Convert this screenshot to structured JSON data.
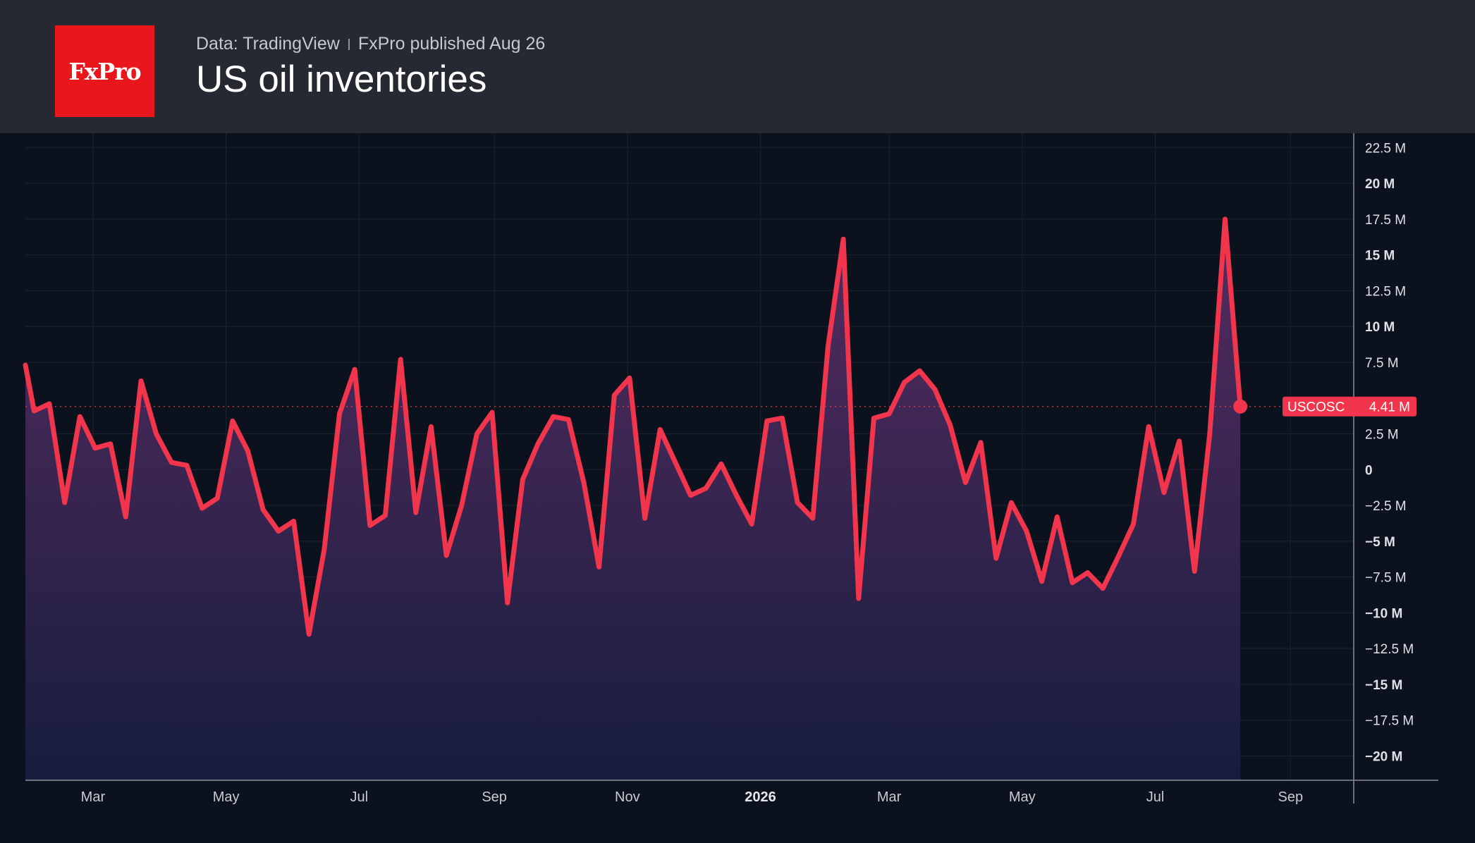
{
  "header": {
    "logo_text": "FxPro",
    "source": "Data: TradingView",
    "published": "FxPro published Aug 26",
    "title": "US oil inventories"
  },
  "colors": {
    "line": "#f0354c",
    "area_top": "#5a2d64",
    "area_bottom": "#161d3d",
    "background": "#0c121d",
    "header_background": "#262832",
    "logo_background": "#e9171b"
  },
  "chart_data": {
    "type": "area",
    "title": "US oil inventories",
    "xlabel": "",
    "ylabel": "",
    "x_range": [
      "2025-01-29",
      "2026-09-30"
    ],
    "ylim": [
      -21.7,
      23.5
    ],
    "grid": true,
    "y_ticks": [
      {
        "value": 22.5,
        "label": "22.5 M",
        "major": false
      },
      {
        "value": 20,
        "label": "20 M",
        "major": true
      },
      {
        "value": 17.5,
        "label": "17.5 M",
        "major": false
      },
      {
        "value": 15,
        "label": "15 M",
        "major": true
      },
      {
        "value": 12.5,
        "label": "12.5 M",
        "major": false
      },
      {
        "value": 10,
        "label": "10 M",
        "major": true
      },
      {
        "value": 7.5,
        "label": "7.5 M",
        "major": false
      },
      {
        "value": 2.5,
        "label": "2.5 M",
        "major": false
      },
      {
        "value": 0,
        "label": "0",
        "major": true
      },
      {
        "value": -2.5,
        "label": "−2.5 M",
        "major": false
      },
      {
        "value": -5,
        "label": "−5 M",
        "major": true
      },
      {
        "value": -7.5,
        "label": "−7.5 M",
        "major": false
      },
      {
        "value": -10,
        "label": "−10 M",
        "major": true
      },
      {
        "value": -12.5,
        "label": "−12.5 M",
        "major": false
      },
      {
        "value": -15,
        "label": "−15 M",
        "major": true
      },
      {
        "value": -17.5,
        "label": "−17.5 M",
        "major": false
      },
      {
        "value": -20,
        "label": "−20 M",
        "major": true
      }
    ],
    "x_ticks": [
      {
        "date": "2025-03-01",
        "label": "Mar",
        "year": false
      },
      {
        "date": "2025-05-01",
        "label": "May",
        "year": false
      },
      {
        "date": "2025-07-01",
        "label": "Jul",
        "year": false
      },
      {
        "date": "2025-09-01",
        "label": "Sep",
        "year": false
      },
      {
        "date": "2025-11-01",
        "label": "Nov",
        "year": false
      },
      {
        "date": "2026-01-01",
        "label": "2026",
        "year": true
      },
      {
        "date": "2026-03-01",
        "label": "Mar",
        "year": false
      },
      {
        "date": "2026-05-01",
        "label": "May",
        "year": false
      },
      {
        "date": "2026-07-01",
        "label": "Jul",
        "year": false
      },
      {
        "date": "2026-09-01",
        "label": "Sep",
        "year": false
      }
    ],
    "series": [
      {
        "name": "USCOSC",
        "last_value": 4.41,
        "last_label": "4.41 M",
        "x": [
          "2025-01-29",
          "2025-02-02",
          "2025-02-09",
          "2025-02-16",
          "2025-02-23",
          "2025-03-02",
          "2025-03-09",
          "2025-03-16",
          "2025-03-23",
          "2025-03-30",
          "2025-04-06",
          "2025-04-13",
          "2025-04-20",
          "2025-04-27",
          "2025-05-04",
          "2025-05-11",
          "2025-05-18",
          "2025-05-25",
          "2025-06-01",
          "2025-06-08",
          "2025-06-15",
          "2025-06-22",
          "2025-06-29",
          "2025-07-06",
          "2025-07-13",
          "2025-07-20",
          "2025-07-27",
          "2025-08-03",
          "2025-08-10",
          "2025-08-17",
          "2025-08-24",
          "2025-08-31",
          "2025-09-07",
          "2025-09-14",
          "2025-09-21",
          "2025-09-28",
          "2025-10-05",
          "2025-10-12",
          "2025-10-19",
          "2025-10-26",
          "2025-11-02",
          "2025-11-09",
          "2025-11-16",
          "2025-11-23",
          "2025-11-30",
          "2025-12-07",
          "2025-12-14",
          "2025-12-21",
          "2025-12-28",
          "2026-01-04",
          "2026-01-11",
          "2026-01-18",
          "2026-01-25",
          "2026-02-01",
          "2026-02-08",
          "2026-02-15",
          "2026-02-22",
          "2026-03-01",
          "2026-03-08",
          "2026-03-15",
          "2026-03-22",
          "2026-03-29",
          "2026-04-05",
          "2026-04-12",
          "2026-04-19",
          "2026-04-26",
          "2026-05-03",
          "2026-05-10",
          "2026-05-17",
          "2026-05-24",
          "2026-05-31",
          "2026-06-07",
          "2026-06-14",
          "2026-06-21",
          "2026-06-28",
          "2026-07-05",
          "2026-07-12",
          "2026-07-19",
          "2026-07-26",
          "2026-08-02",
          "2026-08-09"
        ],
        "values": [
          7.3,
          4.1,
          4.6,
          -2.3,
          3.7,
          1.5,
          1.8,
          -3.3,
          6.2,
          2.5,
          0.5,
          0.3,
          -2.7,
          -2.0,
          3.4,
          1.3,
          -2.8,
          -4.3,
          -3.6,
          -11.5,
          -5.6,
          3.9,
          7.0,
          -3.9,
          -3.2,
          7.7,
          -3.0,
          3.0,
          -6.0,
          -2.5,
          2.5,
          4.0,
          -9.3,
          -0.7,
          1.8,
          3.7,
          3.5,
          -0.9,
          -6.8,
          5.2,
          6.4,
          -3.4,
          2.8,
          0.5,
          -1.8,
          -1.3,
          0.4,
          -1.8,
          -3.8,
          3.4,
          3.6,
          -2.3,
          -3.4,
          8.6,
          16.1,
          -9.0,
          3.6,
          3.9,
          6.1,
          6.9,
          5.6,
          3.1,
          -0.9,
          1.9,
          -6.2,
          -2.3,
          -4.3,
          -7.8,
          -3.3,
          -7.9,
          -7.2,
          -8.3,
          -6.1,
          -3.8,
          3.0,
          -1.6,
          2.0,
          -7.1,
          2.5,
          17.5,
          4.41
        ]
      }
    ]
  }
}
